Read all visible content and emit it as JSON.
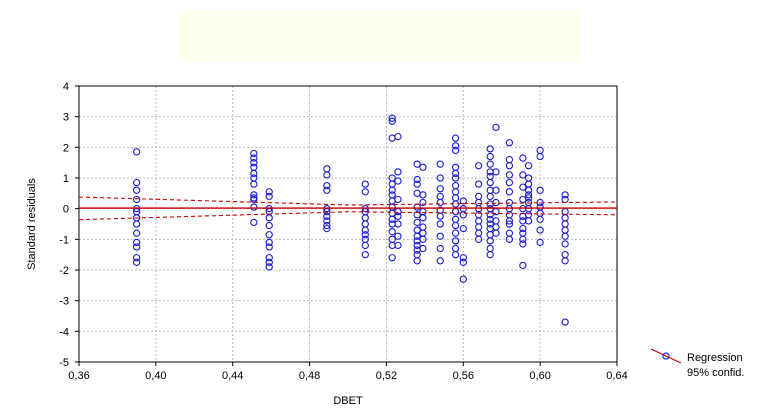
{
  "chart_data": {
    "type": "scatter",
    "title": "",
    "xlabel": "DBET",
    "ylabel": "Standard residuals",
    "xlim": [
      0.36,
      0.64
    ],
    "ylim": [
      -5,
      4
    ],
    "x_ticks": [
      "0,36",
      "0,40",
      "0,44",
      "0,48",
      "0,52",
      "0,56",
      "0,60",
      "0,64"
    ],
    "y_ticks": [
      "-5",
      "-4",
      "-3",
      "-2",
      "-1",
      "0",
      "1",
      "2",
      "3",
      "4"
    ],
    "grid": true,
    "legend_position": "bottom-right",
    "legend": [
      "Regression",
      "95% confid."
    ],
    "colors": {
      "points": "#1a1acc",
      "regression": "#cc0000",
      "confidence": "#cc0000",
      "grid": "#bbbbbb"
    },
    "regression_line": {
      "x": [
        0.36,
        0.64
      ],
      "y": [
        0.02,
        0.02
      ]
    },
    "confidence_upper": {
      "x": [
        0.36,
        0.5,
        0.64
      ],
      "y": [
        0.38,
        0.12,
        0.22
      ]
    },
    "confidence_lower": {
      "x": [
        0.36,
        0.5,
        0.64
      ],
      "y": [
        -0.36,
        -0.1,
        -0.2
      ]
    },
    "series": [
      {
        "x": 0.39,
        "y": [
          1.85,
          0.85,
          0.6,
          0.3,
          -0.1,
          -0.5,
          -0.8,
          -1.1,
          -1.25,
          -1.6,
          -1.75,
          -0.3,
          0.0
        ]
      },
      {
        "x": 0.451,
        "y": [
          1.8,
          1.65,
          1.5,
          1.35,
          1.15,
          1.0,
          0.8,
          0.45,
          0.35,
          0.3,
          0.05,
          -0.45
        ]
      },
      {
        "x": 0.459,
        "y": [
          0.55,
          0.4,
          0.0,
          -0.1,
          -0.3,
          -0.55,
          -0.85,
          -1.1,
          -1.25,
          -1.6,
          -1.75,
          -1.9
        ]
      },
      {
        "x": 0.489,
        "y": [
          1.3,
          1.1,
          0.75,
          0.6,
          0.0,
          -0.1,
          -0.25,
          -0.4,
          -0.55,
          -0.65
        ]
      },
      {
        "x": 0.509,
        "y": [
          0.8,
          0.55,
          0.0,
          -0.1,
          -0.3,
          -0.5,
          -0.7,
          -0.85,
          -1.0,
          -1.2,
          -1.5
        ]
      },
      {
        "x": 0.523,
        "y": [
          2.95,
          2.85,
          2.3,
          1.0,
          0.8,
          0.6,
          0.45,
          0.25,
          0.05,
          -0.15,
          -0.35,
          -0.5,
          -0.75,
          -1.0,
          -1.2,
          -1.6
        ]
      },
      {
        "x": 0.526,
        "y": [
          2.35,
          1.2,
          0.9,
          0.3,
          -0.1,
          -0.25,
          -0.5,
          -0.9,
          -1.2
        ]
      },
      {
        "x": 0.536,
        "y": [
          1.45,
          0.95,
          0.8,
          0.5,
          0.05,
          -0.2,
          -0.45,
          -0.7,
          -0.9,
          -1.05,
          -1.2,
          -1.35,
          -1.5,
          -1.7
        ]
      },
      {
        "x": 0.539,
        "y": [
          1.35,
          0.45,
          0.2,
          -0.1,
          -0.3,
          -0.6,
          -0.8,
          -1.0,
          -1.3
        ]
      },
      {
        "x": 0.548,
        "y": [
          1.45,
          1.0,
          0.65,
          0.4,
          0.2,
          -0.05,
          -0.25,
          -0.5,
          -0.9,
          -1.3,
          -1.7
        ]
      },
      {
        "x": 0.556,
        "y": [
          2.3,
          2.05,
          1.9,
          1.35,
          1.15,
          1.0,
          0.75,
          0.55,
          0.35,
          0.15,
          -0.1,
          -0.35,
          -0.55,
          -0.8,
          -1.05,
          -1.3,
          -1.5
        ]
      },
      {
        "x": 0.56,
        "y": [
          0.25,
          0.0,
          -0.2,
          -0.65,
          -1.6,
          -1.75,
          -2.3
        ]
      },
      {
        "x": 0.568,
        "y": [
          1.4,
          0.8,
          0.4,
          0.2,
          0.0,
          -0.2,
          -0.4,
          -0.6,
          -0.8,
          -1.0
        ]
      },
      {
        "x": 0.574,
        "y": [
          1.95,
          1.7,
          1.45,
          1.2,
          1.05,
          0.85,
          0.6,
          0.4,
          0.15,
          0.0,
          -0.2,
          -0.35,
          -0.5,
          -0.65,
          -0.85,
          -1.05,
          -1.3,
          -1.5
        ]
      },
      {
        "x": 0.577,
        "y": [
          2.65,
          1.2,
          0.6,
          0.2,
          -0.1,
          -0.4,
          -0.6,
          -0.8
        ]
      },
      {
        "x": 0.584,
        "y": [
          2.15,
          1.6,
          1.4,
          1.1,
          0.85,
          0.55,
          0.2,
          0.0,
          -0.2,
          -0.4,
          -0.5,
          -0.8,
          -1.0
        ]
      },
      {
        "x": 0.591,
        "y": [
          1.65,
          1.1,
          0.7,
          0.3,
          0.0,
          -0.25,
          -0.4,
          -0.65,
          -0.8,
          -1.0,
          -1.15,
          -1.85
        ]
      },
      {
        "x": 0.594,
        "y": [
          1.4,
          1.0,
          0.8,
          0.6,
          0.45,
          0.35,
          0.2,
          0.0,
          -0.2,
          -0.4
        ]
      },
      {
        "x": 0.6,
        "y": [
          1.9,
          1.7,
          0.6,
          0.2,
          0.05,
          -0.15,
          -0.35,
          -0.7,
          -1.1
        ]
      },
      {
        "x": 0.613,
        "y": [
          0.45,
          0.3,
          -0.1,
          -0.3,
          -0.5,
          -0.7,
          -0.9,
          -1.15,
          -1.5,
          -1.7,
          -3.7
        ]
      }
    ]
  }
}
